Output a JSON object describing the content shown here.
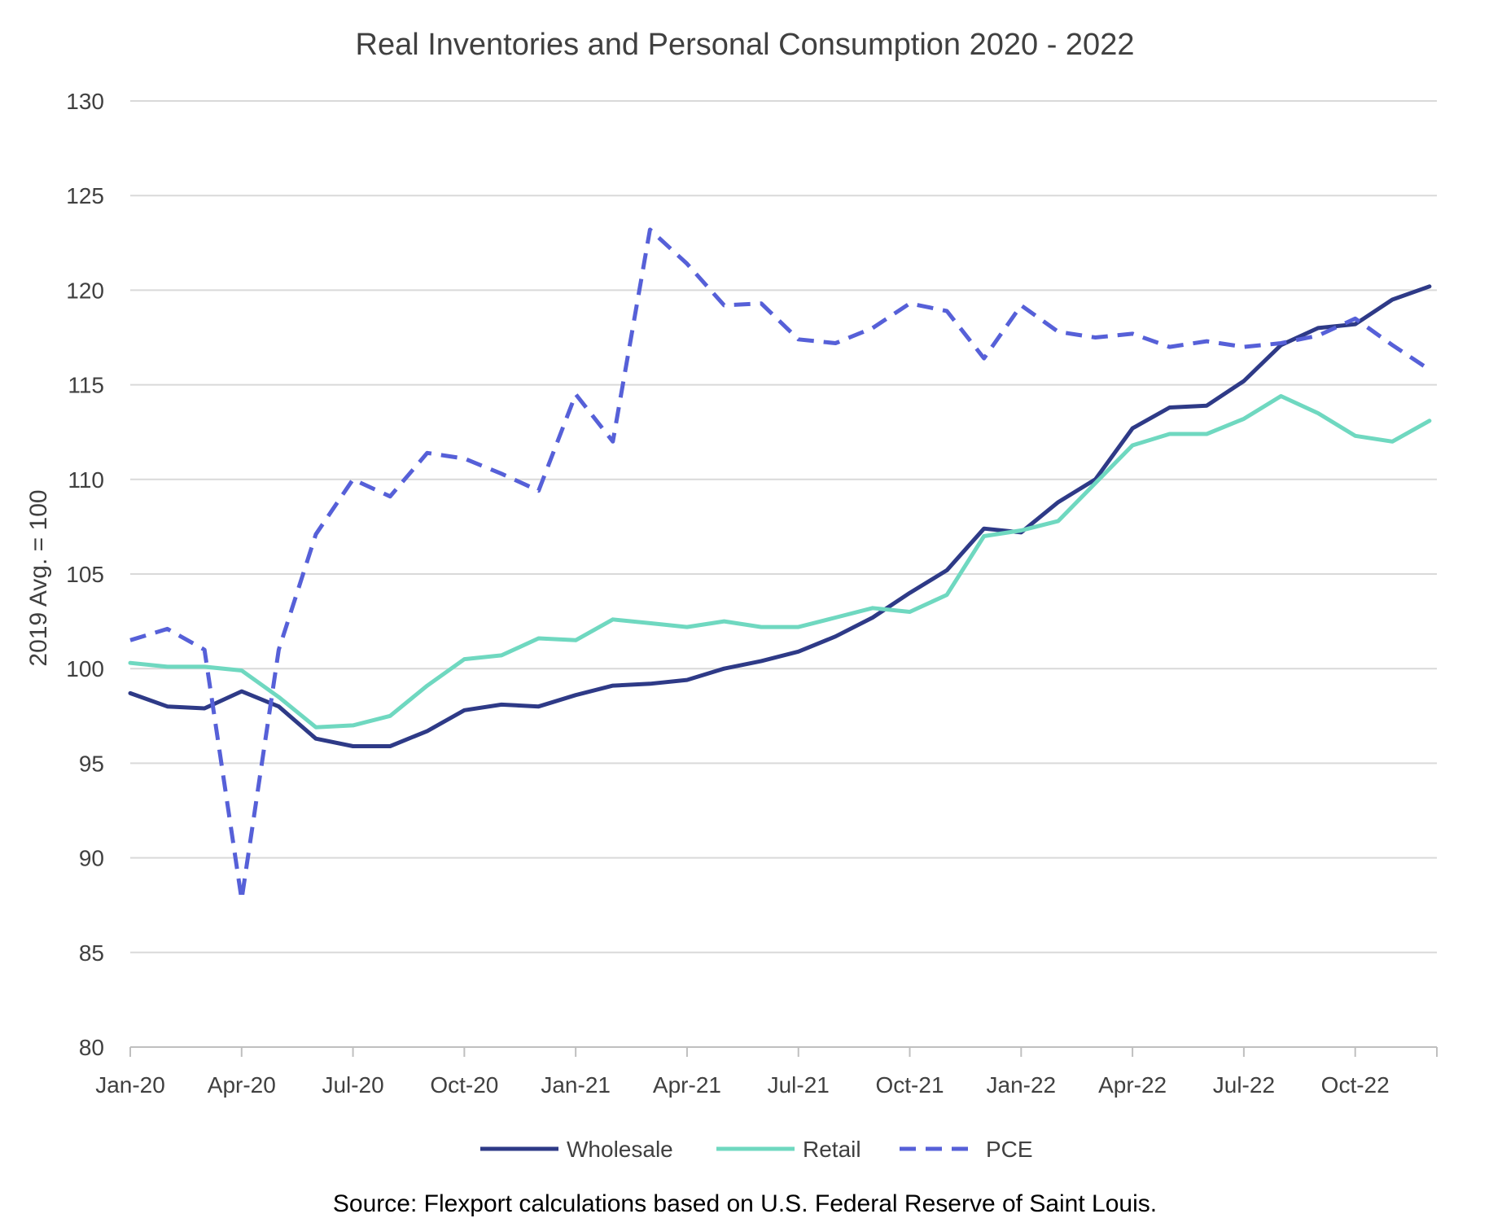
{
  "chart_data": {
    "type": "line",
    "title": "Real Inventories and Personal Consumption 2020 - 2022",
    "ylabel": "2019 Avg. = 100",
    "xlabel": "",
    "ylim": [
      80,
      130
    ],
    "yticks": [
      80,
      85,
      90,
      95,
      100,
      105,
      110,
      115,
      120,
      125,
      130
    ],
    "x": [
      "Jan-20",
      "Feb-20",
      "Mar-20",
      "Apr-20",
      "May-20",
      "Jun-20",
      "Jul-20",
      "Aug-20",
      "Sep-20",
      "Oct-20",
      "Nov-20",
      "Dec-20",
      "Jan-21",
      "Feb-21",
      "Mar-21",
      "Apr-21",
      "May-21",
      "Jun-21",
      "Jul-21",
      "Aug-21",
      "Sep-21",
      "Oct-21",
      "Nov-21",
      "Dec-21",
      "Jan-22",
      "Feb-22",
      "Mar-22",
      "Apr-22",
      "May-22",
      "Jun-22",
      "Jul-22",
      "Aug-22",
      "Sep-22",
      "Oct-22",
      "Nov-22",
      "Dec-22"
    ],
    "xtick_labels": [
      "Jan-20",
      "Apr-20",
      "Jul-20",
      "Oct-20",
      "Jan-21",
      "Apr-21",
      "Jul-21",
      "Oct-21",
      "Jan-22",
      "Apr-22",
      "Jul-22",
      "Oct-22"
    ],
    "grid": "horizontal",
    "legend_position": "bottom",
    "series": [
      {
        "name": "Wholesale",
        "color": "#2e3a87",
        "style": "solid",
        "values": [
          98.7,
          98.0,
          97.9,
          98.8,
          98.0,
          96.3,
          95.9,
          95.9,
          96.7,
          97.8,
          98.1,
          98.0,
          98.6,
          99.1,
          99.2,
          99.4,
          100.0,
          100.4,
          100.9,
          101.7,
          102.7,
          104.0,
          105.2,
          107.4,
          107.2,
          108.8,
          110.0,
          112.7,
          113.8,
          113.9,
          115.2,
          117.1,
          118.0,
          118.2,
          119.5,
          120.2
        ]
      },
      {
        "name": "Retail",
        "color": "#6fd8c0",
        "style": "solid",
        "values": [
          100.3,
          100.1,
          100.1,
          99.9,
          98.5,
          96.9,
          97.0,
          97.5,
          99.1,
          100.5,
          100.7,
          101.6,
          101.5,
          102.6,
          102.4,
          102.2,
          102.5,
          102.2,
          102.2,
          102.7,
          103.2,
          103.0,
          103.9,
          107.0,
          107.3,
          107.8,
          109.8,
          111.8,
          112.4,
          112.4,
          113.2,
          114.4,
          113.5,
          112.3,
          112.0,
          113.1
        ]
      },
      {
        "name": "PCE",
        "color": "#5660d8",
        "style": "dashed",
        "values": [
          101.5,
          102.1,
          101.0,
          87.8,
          101.0,
          107.1,
          110.0,
          109.1,
          111.4,
          111.1,
          110.3,
          109.4,
          114.5,
          112.0,
          123.2,
          121.4,
          119.2,
          119.3,
          117.4,
          117.2,
          118.0,
          119.3,
          118.9,
          116.4,
          119.2,
          117.8,
          117.5,
          117.7,
          117.0,
          117.3,
          117.0,
          117.2,
          117.6,
          118.5,
          117.1,
          115.8
        ]
      }
    ]
  },
  "footer": {
    "source": "Source: Flexport calculations based on U.S. Federal Reserve of Saint Louis."
  }
}
